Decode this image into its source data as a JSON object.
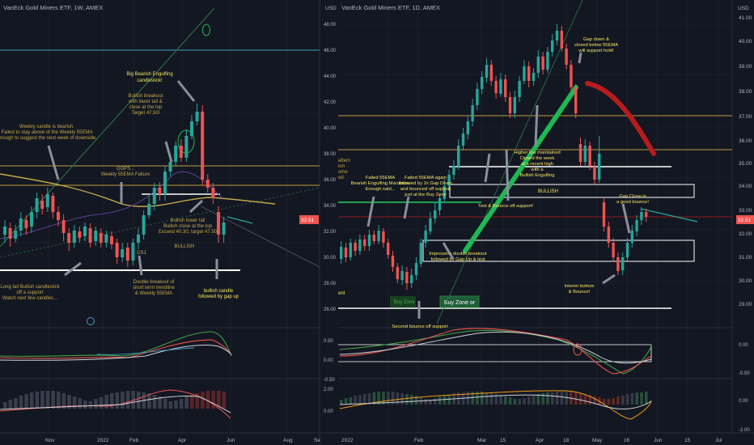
{
  "colors": {
    "bg": "#131722",
    "grid": "#1e2230",
    "up": "#26a69a",
    "down": "#ef5350",
    "yellow": "#f7c948",
    "note": "#f5e663",
    "olive": "#c2a94a",
    "teal_line": "#3d9dbf",
    "arrow": "#8a8f9c",
    "text": "#b2b5be",
    "white": "#ffffff",
    "green_trend": "#1db954",
    "red_projection": "#b71c1c"
  },
  "left_panel": {
    "title": "VanEck Gold Miners ETF, 1W, AMEX",
    "time_labels": [
      "Nov",
      "2022",
      "Feb",
      "Apr",
      "Jun",
      "Aug",
      "Se"
    ],
    "annotations": {
      "big_bearish": "Big Bearish Engulfing candlestick!",
      "bullish_breakout": "Bullish breakout with lower tail & close at the top Target 47.50!",
      "weekly_bearish": "Weekly candle is bearish. Failed to stay above of the Weekly 55EMA Enough to suggest the next week of downside.",
      "oops": "OOPS... Weekly 55EMA Failure",
      "bullish_lower_tail": "Bullish lower tail Bullish close at the top Exceed 40.30, target 47.50",
      "bullish_tag": "BULLISH",
      "gs1": "GS1",
      "long_tail": "Long tail Bullish candlestick off a support Watch next few candles...",
      "double_breakout": "Double breakout of short term trendline & Weekly 55EMA",
      "bullish_candle": "bullish candle followed by gap up"
    }
  },
  "right_panel": {
    "title": "VanEck Gold Miners ETF, 1D, AMEX",
    "currency": "USD",
    "price_axis": [
      "41.00",
      "40.00",
      "39.00",
      "38.00",
      "37.00",
      "36.00",
      "35.00",
      "34.00",
      "33.00",
      "32.00",
      "31.00",
      "30.00",
      "29.00"
    ],
    "last_price": "32.51",
    "inner_axis": [
      "48.00",
      "46.00",
      "44.00",
      "42.00",
      "40.00",
      "38.00",
      "36.00",
      "34.00",
      "32.00",
      "30.00",
      "28.00",
      "26.00"
    ],
    "time_labels": [
      "2022",
      "Feb",
      "Mar",
      "15",
      "Apr",
      "18",
      "May",
      "16",
      "Jun",
      "15",
      "Jul"
    ],
    "osc1_axis": [
      "0.50",
      "0.00",
      "-0.50"
    ],
    "osc1_right_axis": [
      "0.00",
      "-0.50"
    ],
    "osc2_axis": [
      "2.00",
      "0.00"
    ],
    "osc2_right_axis": [
      "0.00",
      "-2.00"
    ],
    "left_fragments": [
      "attern",
      "ion",
      "ome",
      "ed",
      "ent"
    ],
    "annotations": {
      "gap_down": "Gap down & closed below 55EMA will support hold!",
      "higher_low": "Higher low maintained Closed the week at a recent high with a Bullish Engulfing",
      "bullish_box": "BULLISH",
      "failed_55ema": "Failed 55EMA Bearish Engulfing Marubozu Enough said...",
      "failed_55ema_again": "Failed 55EMA again followed by 2x Gap Down and bounced off support just at the Buy Zone",
      "test_bounce": "Test & Bounce off support!",
      "gap_close": "Gap Close is a good bounce!",
      "impressive": "Impressive double breakout followed by Gap Up & test",
      "buy_zone_a": "Buy Zone",
      "buy_zone_b": "Buy Zone or",
      "second_bounce": "Second bounce off support",
      "interim_bottom": "Interim bottom & Bounce!"
    }
  },
  "chart_data": [
    {
      "type": "candlestick",
      "title": "VanEck Gold Miners ETF, 1W, AMEX",
      "x_ticks": [
        "Nov",
        "2022",
        "Feb",
        "Apr",
        "Jun",
        "Aug",
        "Se"
      ]
    },
    {
      "type": "candlestick",
      "title": "VanEck Gold Miners ETF, 1D, AMEX",
      "y_axis_ticks": [
        41,
        40,
        39,
        38,
        37,
        36,
        35,
        34,
        33,
        32,
        31,
        30,
        29
      ],
      "last_price": 32.51,
      "x_ticks": [
        "2022",
        "Feb",
        "Mar",
        "15",
        "Apr",
        "18",
        "May",
        "16",
        "Jun",
        "15",
        "Jul"
      ]
    }
  ]
}
